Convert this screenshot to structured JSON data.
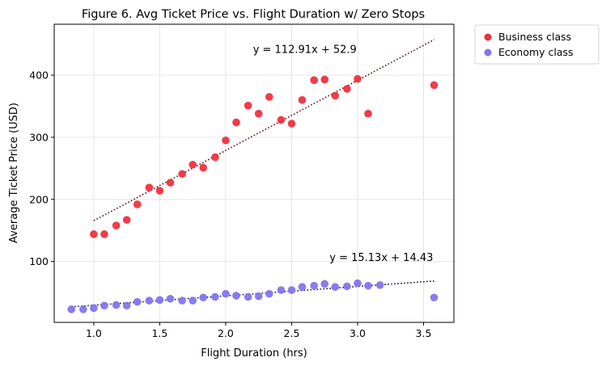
{
  "chart_data": {
    "type": "scatter",
    "title": "Figure 6. Avg Ticket Price vs. Flight Duration w/ Zero Stops",
    "xlabel": "Flight Duration (hrs)",
    "ylabel": "Average Ticket Price (USD)",
    "xlim": [
      0.7,
      3.73
    ],
    "ylim": [
      2,
      482
    ],
    "xticks": [
      1.0,
      1.5,
      2.0,
      2.5,
      3.0,
      3.5
    ],
    "xtick_labels": [
      "1.0",
      "1.5",
      "2.0",
      "2.5",
      "3.0",
      "3.5"
    ],
    "yticks": [
      100,
      200,
      300,
      400
    ],
    "ytick_labels": [
      "100",
      "200",
      "300",
      "400"
    ],
    "grid": true,
    "legend_position": "outside-upper-right",
    "series": [
      {
        "name": "Business class",
        "color": "#f0303f",
        "points": [
          [
            1.0,
            144
          ],
          [
            1.08,
            144
          ],
          [
            1.17,
            158
          ],
          [
            1.25,
            167
          ],
          [
            1.33,
            192
          ],
          [
            1.42,
            219
          ],
          [
            1.5,
            214
          ],
          [
            1.58,
            227
          ],
          [
            1.67,
            241
          ],
          [
            1.75,
            256
          ],
          [
            1.83,
            251
          ],
          [
            1.92,
            268
          ],
          [
            2.0,
            295
          ],
          [
            2.08,
            324
          ],
          [
            2.17,
            351
          ],
          [
            2.25,
            338
          ],
          [
            2.33,
            365
          ],
          [
            2.42,
            328
          ],
          [
            2.5,
            322
          ],
          [
            2.58,
            360
          ],
          [
            2.67,
            392
          ],
          [
            2.75,
            393
          ],
          [
            2.83,
            367
          ],
          [
            2.92,
            378
          ],
          [
            3.0,
            394
          ],
          [
            3.08,
            338
          ],
          [
            3.58,
            384
          ]
        ],
        "trendline": {
          "slope": 112.91,
          "intercept": 52.9,
          "x_range": [
            1.0,
            3.58
          ],
          "label": "y = 112.91x + 52.9",
          "label_at": [
            2.6,
            436
          ],
          "color": "#5a0f1a"
        }
      },
      {
        "name": "Economy class",
        "color": "#8275ee",
        "points": [
          [
            0.83,
            23
          ],
          [
            0.92,
            23
          ],
          [
            1.0,
            25
          ],
          [
            1.08,
            29
          ],
          [
            1.17,
            30
          ],
          [
            1.25,
            29
          ],
          [
            1.33,
            35
          ],
          [
            1.42,
            37
          ],
          [
            1.5,
            38
          ],
          [
            1.58,
            40
          ],
          [
            1.67,
            37
          ],
          [
            1.75,
            37
          ],
          [
            1.83,
            42
          ],
          [
            1.92,
            43
          ],
          [
            2.0,
            48
          ],
          [
            2.08,
            45
          ],
          [
            2.17,
            43
          ],
          [
            2.25,
            44
          ],
          [
            2.33,
            48
          ],
          [
            2.42,
            54
          ],
          [
            2.5,
            54
          ],
          [
            2.58,
            59
          ],
          [
            2.67,
            61
          ],
          [
            2.75,
            64
          ],
          [
            2.83,
            59
          ],
          [
            2.92,
            60
          ],
          [
            3.0,
            65
          ],
          [
            3.08,
            61
          ],
          [
            3.17,
            62
          ],
          [
            3.58,
            42
          ]
        ],
        "trendline": {
          "slope": 15.13,
          "intercept": 14.43,
          "x_range": [
            0.83,
            3.58
          ],
          "label": "y = 15.13x + 14.43",
          "label_at": [
            3.18,
            101
          ],
          "color": "#14143a"
        }
      }
    ]
  }
}
